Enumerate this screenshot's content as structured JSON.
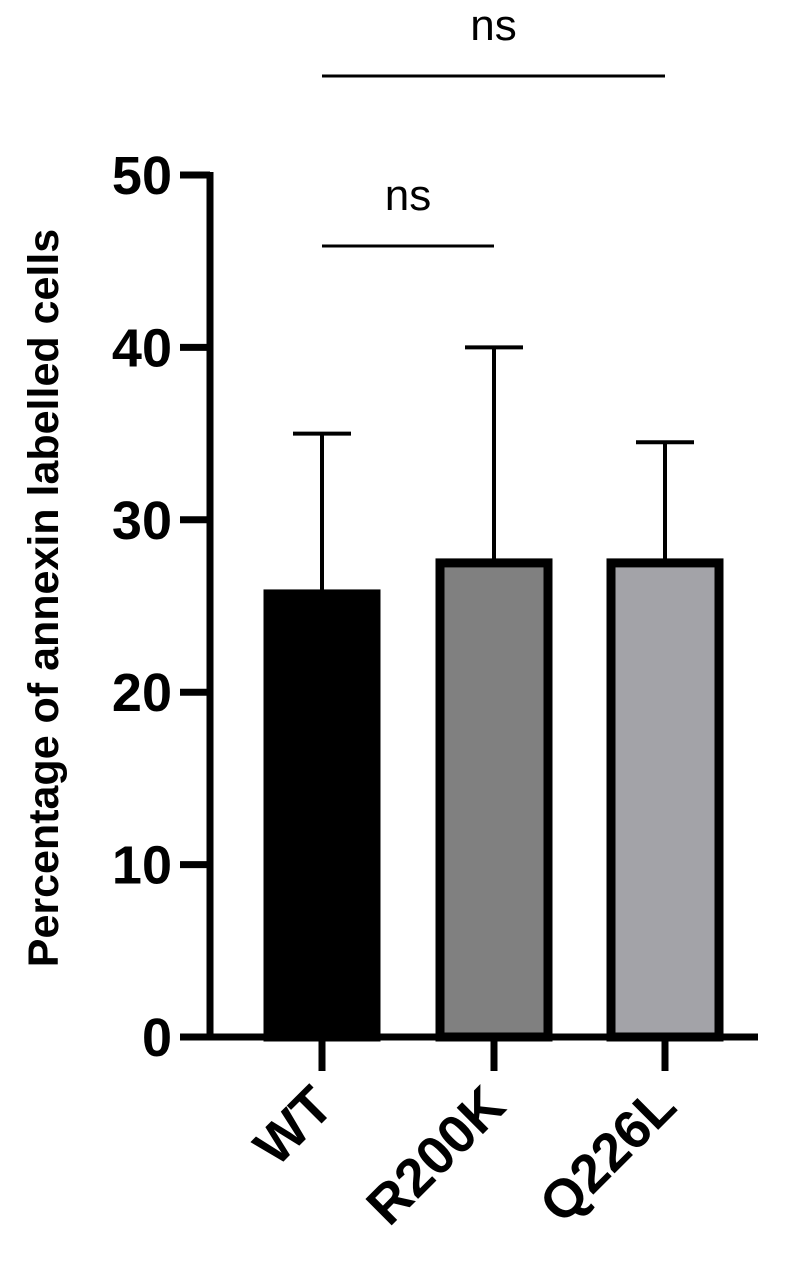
{
  "chart_data": {
    "type": "bar",
    "title": "",
    "xlabel": "",
    "ylabel": "Percentage of annexin labelled cells",
    "ylim": [
      0,
      50
    ],
    "yticks": [
      0,
      10,
      20,
      30,
      40,
      50
    ],
    "ytick_labels": [
      "0",
      "10",
      "20",
      "30",
      "40",
      "50"
    ],
    "categories": [
      "WT",
      "R200K",
      "Q226L"
    ],
    "values": [
      25.7,
      27.5,
      27.5
    ],
    "error_upper": [
      35.0,
      40.0,
      34.5
    ],
    "bar_colors": [
      "#000000",
      "#808080",
      "#a3a3a8"
    ],
    "grid": false,
    "significance": [
      {
        "from": "WT",
        "to": "R200K",
        "label": "ns"
      },
      {
        "from": "WT",
        "to": "Q226L",
        "label": "ns"
      }
    ]
  }
}
